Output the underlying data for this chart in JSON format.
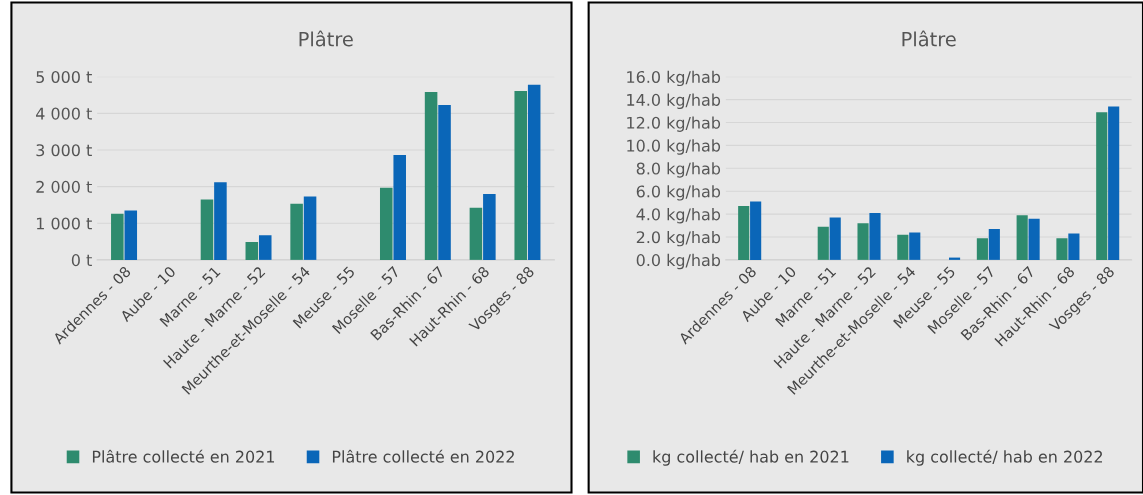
{
  "chart_data": [
    {
      "type": "bar",
      "title": "Plâtre",
      "categories": [
        "Ardennes - 08",
        "Aube - 10",
        "Marne - 51",
        "Haute - Marne - 52",
        "Meurthe-et-Moselle - 54",
        "Meuse - 55",
        "Moselle - 57",
        "Bas-Rhin - 67",
        "Haut-Rhin - 68",
        "Vosges - 88"
      ],
      "series": [
        {
          "name": "Plâtre collecté en 2021",
          "color": "#2e8b6e",
          "values": [
            1260,
            null,
            1650,
            490,
            1530,
            null,
            1970,
            4580,
            1420,
            4610
          ]
        },
        {
          "name": "Plâtre collecté en 2022",
          "color": "#0a66b8",
          "values": [
            1350,
            null,
            2120,
            670,
            1730,
            null,
            2860,
            4230,
            1800,
            4780
          ]
        }
      ],
      "ylim": [
        0,
        5000
      ],
      "yticks": [
        {
          "value": 0,
          "label": "0 t"
        },
        {
          "value": 1000,
          "label": "1 000 t"
        },
        {
          "value": 2000,
          "label": "2 000 t"
        },
        {
          "value": 3000,
          "label": "3 000 t"
        },
        {
          "value": 4000,
          "label": "4 000 t"
        },
        {
          "value": 5000,
          "label": "5 000 t"
        }
      ],
      "grid": "y",
      "legend": "bottom"
    },
    {
      "type": "bar",
      "title": "Plâtre",
      "categories": [
        "Ardennes - 08",
        "Aube - 10",
        "Marne - 51",
        "Haute - Marne - 52",
        "Meurthe-et-Moselle - 54",
        "Meuse - 55",
        "Moselle - 57",
        "Bas-Rhin - 67",
        "Haut-Rhin - 68",
        "Vosges - 88"
      ],
      "series": [
        {
          "name": "kg collecté/ hab en 2021",
          "color": "#2e8b6e",
          "values": [
            4.7,
            null,
            2.9,
            3.2,
            2.2,
            null,
            1.9,
            3.9,
            1.9,
            12.9
          ]
        },
        {
          "name": "kg collecté/ hab en 2022",
          "color": "#0a66b8",
          "values": [
            5.1,
            null,
            3.7,
            4.1,
            2.4,
            0.2,
            2.7,
            3.6,
            2.3,
            13.4
          ]
        }
      ],
      "ylim": [
        0,
        16
      ],
      "yticks": [
        {
          "value": 0,
          "label": "0.0 kg/hab"
        },
        {
          "value": 2,
          "label": "2.0 kg/hab"
        },
        {
          "value": 4,
          "label": "4.0 kg/hab"
        },
        {
          "value": 6,
          "label": "6.0 kg/hab"
        },
        {
          "value": 8,
          "label": "8.0 kg/hab"
        },
        {
          "value": 10,
          "label": "10.0 kg/hab"
        },
        {
          "value": 12,
          "label": "12.0 kg/hab"
        },
        {
          "value": 14,
          "label": "14.0 kg/hab"
        },
        {
          "value": 16,
          "label": "16.0 kg/hab"
        }
      ],
      "grid": "y",
      "legend": "bottom"
    }
  ]
}
